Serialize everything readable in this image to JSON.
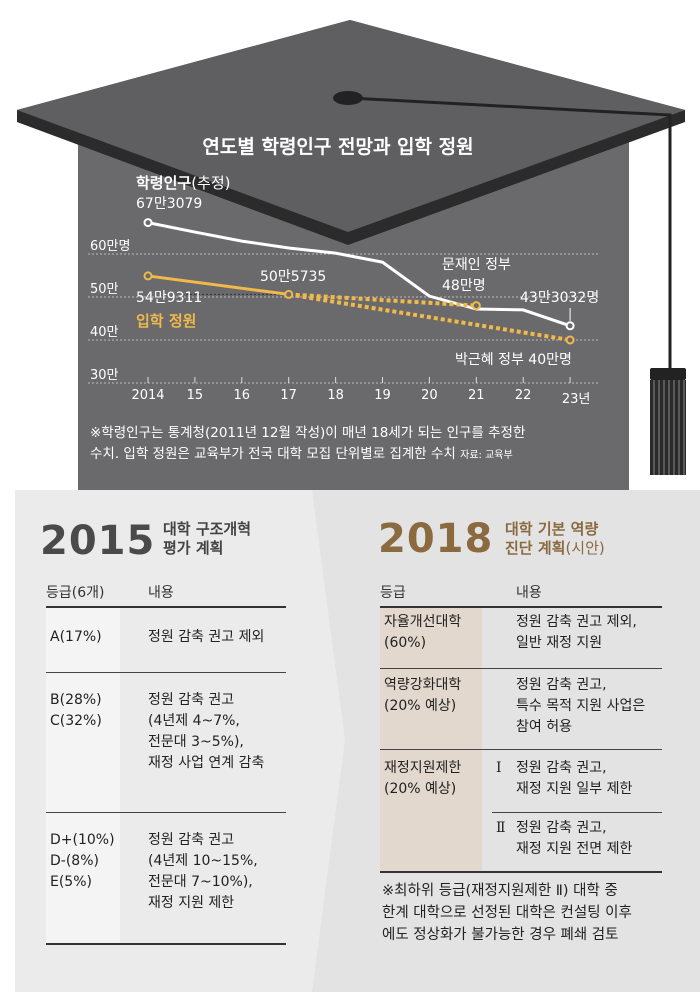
{
  "title": "연도별 학령인구 전망과 입학 정원",
  "chart_data": {
    "type": "line",
    "title": "연도별 학령인구 전망과 입학 정원",
    "x_tick_labels": [
      "2014",
      "15",
      "16",
      "17",
      "18",
      "19",
      "20",
      "21",
      "22",
      "23년"
    ],
    "x": [
      2014,
      2015,
      2016,
      2017,
      2018,
      2019,
      2020,
      2021,
      2022,
      2023
    ],
    "y_tick_labels": [
      "30만",
      "40만",
      "50만",
      "60만명"
    ],
    "ylim": [
      30,
      70
    ],
    "y_unit": "만명",
    "grid": "dotted horizontal",
    "series": [
      {
        "name": "학령인구",
        "name_suffix": "(추정)",
        "color": "#ffffff",
        "style": "solid",
        "values": [
          67.3,
          65.1,
          63.0,
          61.4,
          60.2,
          58.1,
          50.2,
          47.2,
          47.0,
          43.3
        ]
      },
      {
        "name": "입학 정원",
        "color": "#f0b94a",
        "style": "solid",
        "x": [
          2014,
          2017
        ],
        "values": [
          54.9,
          50.6
        ]
      },
      {
        "name": "문재인 정부",
        "color": "#f0b94a",
        "style": "dotted",
        "x": [
          2017,
          2021
        ],
        "values": [
          50.6,
          48.0
        ]
      },
      {
        "name": "박근혜 정부",
        "color": "#f0b94a",
        "style": "dotted",
        "x": [
          2017,
          2023
        ],
        "values": [
          50.6,
          40.0
        ]
      }
    ],
    "annotations": {
      "pop_start": "67만3079",
      "pop_end": "43만3032명",
      "quota_start": "54만9311",
      "quota_2017": "50만5735",
      "moon_label": "문재인 정부",
      "moon_value": "48만명",
      "park_label": "박근혜 정부 40만명"
    }
  },
  "footnote": [
    "※학령인구는 통계청(2011년 12월 작성)이 매년 18세가 되는 인구를 추정한",
    "수치. 입학 정원은 교육부가 전국 대학 모집 단위별로 집계한 수치"
  ],
  "source": "자료: 교육부",
  "plan2015": {
    "year": "2015",
    "subtitle": [
      "대학 구조개혁",
      "평가 계획"
    ],
    "col_grade": "등급(6개)",
    "col_content": "내용",
    "rows": [
      {
        "grade": [
          "A(17%)"
        ],
        "content": [
          "정원 감축 권고 제외"
        ]
      },
      {
        "grade": [
          "B(28%)",
          "C(32%)"
        ],
        "content": [
          "정원 감축 권고",
          "(4년제 4~7%,",
          "전문대 3~5%),",
          "재정 사업 연계 감축"
        ]
      },
      {
        "grade": [
          "D+(10%)",
          "D-(8%)",
          "E(5%)"
        ],
        "content": [
          "정원 감축 권고",
          "(4년제 10~15%,",
          "전문대 7~10%),",
          "재정 지원 제한"
        ]
      }
    ]
  },
  "plan2018": {
    "year": "2018",
    "subtitle": [
      "대학 기본 역량",
      "진단 계획",
      "(시안)"
    ],
    "col_grade": "등급",
    "col_content": "내용",
    "rows": [
      {
        "grade": [
          "자율개선대학",
          "(60%)"
        ],
        "content": [
          "정원 감축 권고 제외,",
          "일반 재정 지원"
        ]
      },
      {
        "grade": [
          "역량강화대학",
          "(20% 예상)"
        ],
        "content": [
          "정원 감축 권고,",
          "특수 목적 지원 사업은",
          "참여 허용"
        ]
      },
      {
        "grade": [
          "재정지원제한",
          "(20% 예상)"
        ],
        "sub": [
          {
            "level": "Ⅰ",
            "content": [
              "정원 감축 권고,",
              "재정 지원 일부 제한"
            ]
          },
          {
            "level": "Ⅱ",
            "content": [
              "정원 감축 권고,",
              "재정 지원 전면 제한"
            ]
          }
        ]
      }
    ],
    "note": [
      "※최하위 등급(재정지원제한 Ⅱ) 대학 중",
      "한계 대학으로 선정된 대학은 컨설팅 이후",
      "에도 정상화가 불가능한 경우 폐쇄 검토"
    ]
  },
  "colors": {
    "board": "#6a6a6c",
    "cap": "#5e5e60",
    "quota": "#f0b94a",
    "accent2018": "#8b6a40",
    "grade2018": "#e2d8cd"
  }
}
